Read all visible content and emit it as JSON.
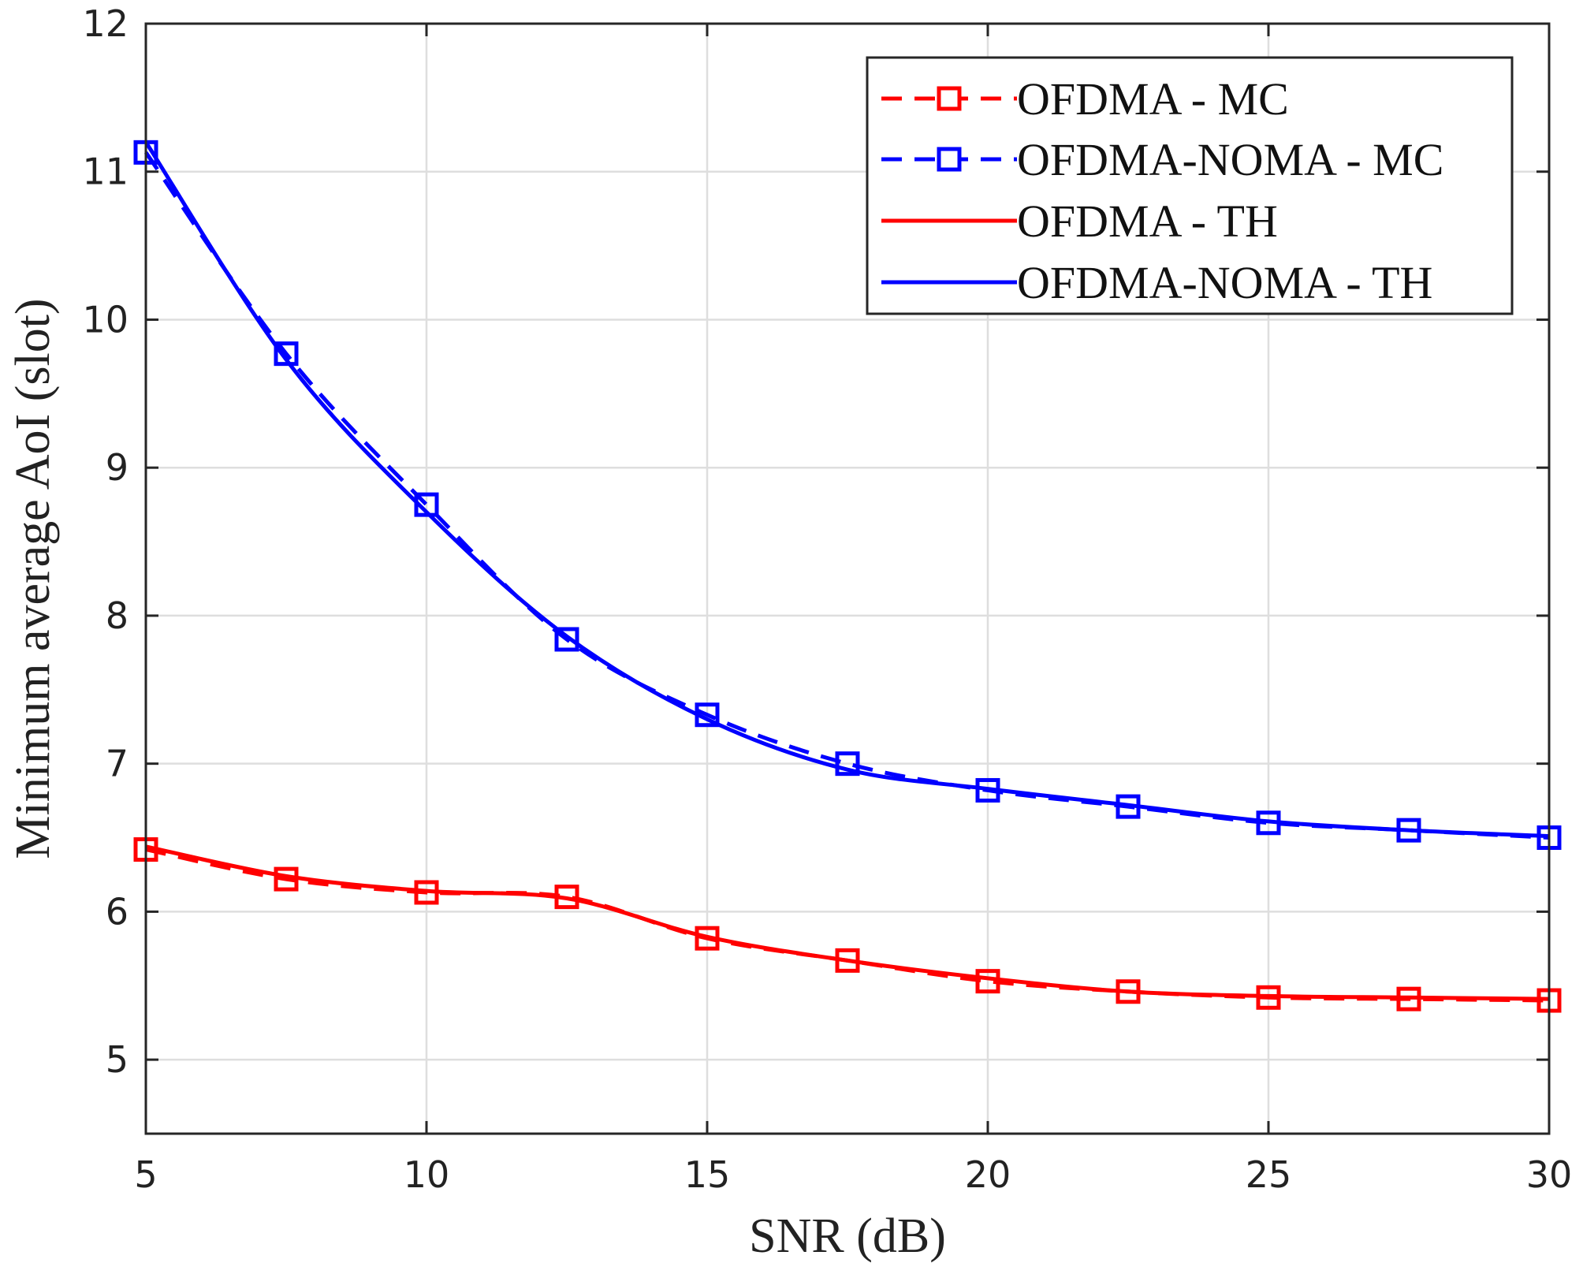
{
  "chart_data": {
    "type": "line",
    "title": "",
    "xlabel": "SNR (dB)",
    "ylabel": "Minimum average AoI (slot)",
    "xlim": [
      5,
      30
    ],
    "ylim": [
      4.5,
      12
    ],
    "xticks": [
      5,
      10,
      15,
      20,
      25,
      30
    ],
    "yticks": [
      5,
      6,
      7,
      8,
      9,
      10,
      11,
      12
    ],
    "grid": true,
    "legend_position": "top-right",
    "x": [
      5,
      7.5,
      10,
      12.5,
      15,
      17.5,
      20,
      22.5,
      25,
      27.5,
      30
    ],
    "series": [
      {
        "name": "OFDMA - MC",
        "color": "#ff0000",
        "style": "dashed",
        "marker": "square",
        "values": [
          6.42,
          6.22,
          6.13,
          6.1,
          5.82,
          5.67,
          5.53,
          5.46,
          5.42,
          5.41,
          5.4
        ]
      },
      {
        "name": "OFDMA-NOMA - MC",
        "color": "#0000ff",
        "style": "dashed",
        "marker": "square",
        "values": [
          11.13,
          9.77,
          8.75,
          7.84,
          7.33,
          7.0,
          6.82,
          6.71,
          6.6,
          6.55,
          6.5
        ]
      },
      {
        "name": "OFDMA - TH",
        "color": "#ff0000",
        "style": "solid",
        "marker": "none",
        "values": [
          6.44,
          6.24,
          6.14,
          6.09,
          5.83,
          5.67,
          5.55,
          5.46,
          5.43,
          5.42,
          5.41
        ]
      },
      {
        "name": "OFDMA-NOMA - TH",
        "color": "#0000ff",
        "style": "solid",
        "marker": "none",
        "values": [
          11.2,
          9.73,
          8.7,
          7.86,
          7.3,
          6.96,
          6.83,
          6.72,
          6.61,
          6.55,
          6.51
        ]
      }
    ]
  }
}
